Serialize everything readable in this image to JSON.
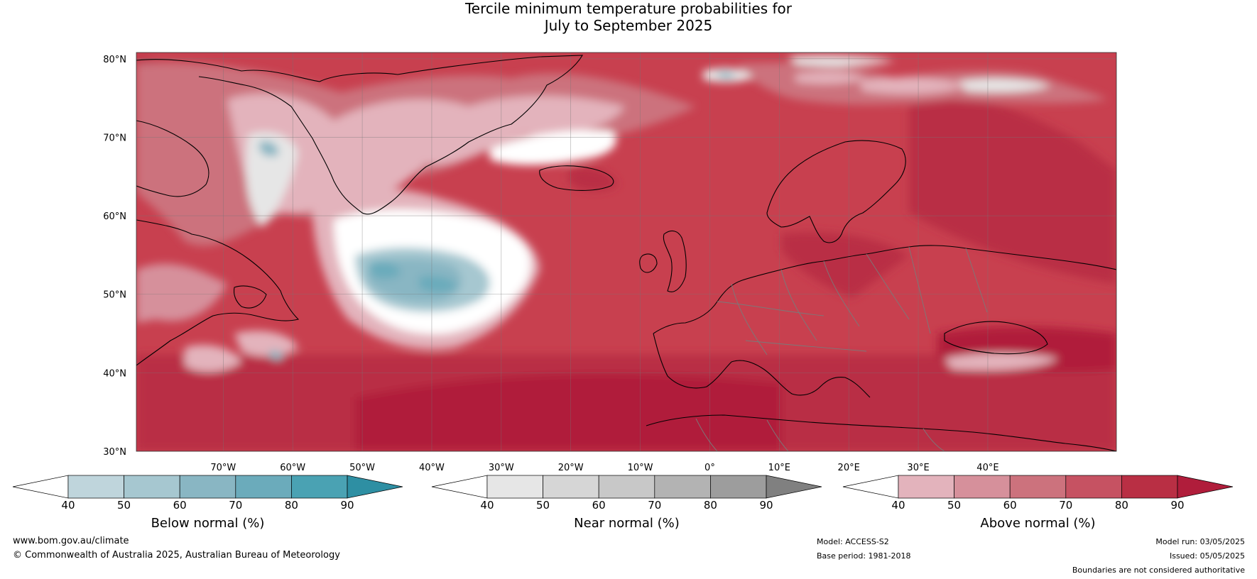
{
  "title": {
    "line1": "Tercile minimum temperature probabilities for",
    "line2": "July to September 2025"
  },
  "map": {
    "lat_labels": [
      "80°N",
      "70°N",
      "60°N",
      "50°N",
      "40°N",
      "30°N"
    ],
    "lon_labels": [
      "70°W",
      "60°W",
      "50°W",
      "40°W",
      "30°W",
      "20°W",
      "10°W",
      "0°",
      "10°E",
      "20°E",
      "30°E",
      "40°E"
    ],
    "background_color": "#c8404f",
    "coastline_color": "#000000",
    "border_color": "#7a7a7a"
  },
  "colorbars": [
    {
      "name": "below",
      "label": "Below normal (%)",
      "ticks": [
        "40",
        "50",
        "60",
        "70",
        "80",
        "90"
      ],
      "colors": [
        "#ffffff",
        "#bfd5dc",
        "#a6c7d0",
        "#89b6c3",
        "#6babbb",
        "#4aa2b3",
        "#2e8fa3"
      ]
    },
    {
      "name": "near",
      "label": "Near normal (%)",
      "ticks": [
        "40",
        "50",
        "60",
        "70",
        "80",
        "90"
      ],
      "colors": [
        "#ffffff",
        "#e6e6e6",
        "#d6d6d6",
        "#c8c8c8",
        "#b3b3b3",
        "#9d9d9d",
        "#808080"
      ]
    },
    {
      "name": "above",
      "label": "Above normal (%)",
      "ticks": [
        "40",
        "50",
        "60",
        "70",
        "80",
        "90"
      ],
      "colors": [
        "#ffffff",
        "#e3b3bc",
        "#d6909b",
        "#cc727d",
        "#c65262",
        "#b92f44",
        "#b01d3b"
      ]
    }
  ],
  "footer": {
    "website": "www.bom.gov.au/climate",
    "copyright": "© Commonwealth of Australia 2025, Australian Bureau of Meteorology",
    "model": "Model: ACCESS-S2",
    "base_period": "Base period: 1981-2018",
    "model_run": "Model run: 03/05/2025",
    "issued": "Issued: 05/05/2025",
    "disclaimer": "Boundaries are not considered authoritative"
  }
}
